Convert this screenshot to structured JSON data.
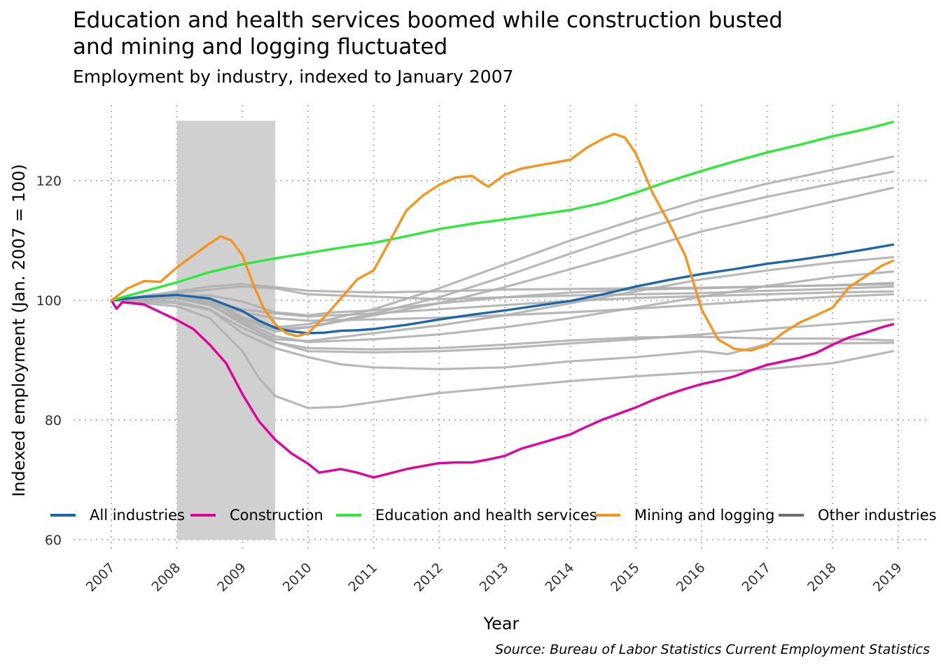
{
  "chart_data": {
    "type": "line",
    "title": "Education and health services boomed while construction busted\n and mining and logging fluctuated",
    "subtitle": "Employment by industry, indexed to January 2007",
    "xlabel": "Year",
    "ylabel": "Indexed employment (Jan. 2007 = 100)",
    "caption": "Source: Bureau of Labor Statistics Current Employment Statistics",
    "xlim": [
      2007.0,
      2019.0
    ],
    "ylim": [
      60,
      130
    ],
    "x_ticks": [
      2007,
      2008,
      2009,
      2010,
      2011,
      2012,
      2013,
      2014,
      2015,
      2016,
      2017,
      2018,
      2019
    ],
    "y_ticks": [
      60,
      80,
      100,
      120
    ],
    "grid": true,
    "legend_position": "bottom-inside",
    "shaded_region": {
      "x": [
        2008.0,
        2009.5
      ],
      "ymax": 130,
      "color": "#d0d0d0"
    },
    "legend": [
      {
        "name": "All industries",
        "color": "#1f66a8"
      },
      {
        "name": "Construction",
        "color": "#e0009a"
      },
      {
        "name": "Education and health services",
        "color": "#2ee83a"
      },
      {
        "name": "Mining and logging",
        "color": "#f7941d"
      },
      {
        "name": "Other industries",
        "color": "#6e6e6e"
      }
    ],
    "other_color": "#b0b0b0",
    "series": [
      {
        "group": "All industries",
        "x": [
          2007,
          2007.5,
          2008,
          2008.5,
          2009,
          2009.25,
          2009.5,
          2009.75,
          2010,
          2010.25,
          2010.5,
          2010.75,
          2011,
          2011.5,
          2012,
          2012.5,
          2013,
          2013.5,
          2014,
          2014.5,
          2015,
          2015.5,
          2016,
          2016.5,
          2017,
          2017.5,
          2018,
          2018.5,
          2018.92
        ],
        "y": [
          100,
          100.6,
          100.9,
          100.3,
          98.2,
          96.6,
          95.4,
          94.8,
          94.5,
          94.6,
          94.9,
          95.0,
          95.2,
          95.9,
          96.8,
          97.6,
          98.3,
          99.1,
          99.9,
          101.0,
          102.3,
          103.4,
          104.4,
          105.2,
          106.1,
          106.8,
          107.6,
          108.5,
          109.3
        ]
      },
      {
        "group": "Construction",
        "x": [
          2007,
          2007.08,
          2007.17,
          2007.5,
          2007.75,
          2008,
          2008.25,
          2008.5,
          2008.75,
          2009,
          2009.25,
          2009.5,
          2009.75,
          2010,
          2010.17,
          2010.5,
          2010.75,
          2011,
          2011.25,
          2011.5,
          2011.75,
          2012,
          2012.25,
          2012.5,
          2012.75,
          2013,
          2013.25,
          2013.5,
          2013.75,
          2014,
          2014.25,
          2014.5,
          2014.75,
          2015,
          2015.25,
          2015.5,
          2015.75,
          2016,
          2016.25,
          2016.5,
          2016.75,
          2017,
          2017.25,
          2017.5,
          2017.75,
          2018,
          2018.25,
          2018.5,
          2018.75,
          2018.92
        ],
        "y": [
          100,
          98.6,
          99.7,
          99.3,
          98.0,
          96.7,
          95.2,
          92.6,
          89.5,
          84.3,
          79.8,
          76.7,
          74.4,
          72.7,
          71.2,
          71.8,
          71.2,
          70.4,
          71.1,
          71.8,
          72.3,
          72.8,
          72.9,
          72.9,
          73.4,
          74.0,
          75.2,
          76.0,
          76.8,
          77.6,
          78.9,
          80.1,
          81.1,
          82.1,
          83.3,
          84.3,
          85.2,
          86.0,
          86.6,
          87.3,
          88.3,
          89.2,
          89.8,
          90.4,
          91.2,
          92.6,
          93.8,
          94.6,
          95.5,
          96.0
        ]
      },
      {
        "group": "Education and health services",
        "x": [
          2007,
          2007.5,
          2008,
          2008.5,
          2009,
          2009.5,
          2010,
          2010.5,
          2011,
          2011.5,
          2012,
          2012.5,
          2013,
          2013.5,
          2014,
          2014.5,
          2015,
          2015.5,
          2016,
          2016.5,
          2017,
          2017.5,
          2018,
          2018.5,
          2018.92
        ],
        "y": [
          100,
          101.5,
          103.0,
          104.7,
          106.0,
          107.0,
          107.9,
          108.8,
          109.6,
          110.7,
          111.9,
          112.8,
          113.5,
          114.3,
          115.1,
          116.3,
          118.0,
          119.9,
          121.6,
          123.2,
          124.7,
          126.0,
          127.4,
          128.6,
          129.8
        ]
      },
      {
        "group": "Mining and logging",
        "x": [
          2007,
          2007.25,
          2007.5,
          2007.75,
          2008,
          2008.25,
          2008.5,
          2008.67,
          2008.83,
          2009,
          2009.17,
          2009.33,
          2009.5,
          2009.67,
          2009.83,
          2010,
          2010.25,
          2010.5,
          2010.75,
          2011,
          2011.25,
          2011.5,
          2011.75,
          2012,
          2012.25,
          2012.5,
          2012.67,
          2012.75,
          2013,
          2013.25,
          2013.5,
          2013.75,
          2014,
          2014.25,
          2014.5,
          2014.67,
          2014.83,
          2015,
          2015.25,
          2015.5,
          2015.75,
          2016,
          2016.25,
          2016.5,
          2016.75,
          2017,
          2017.25,
          2017.5,
          2017.75,
          2018,
          2018.25,
          2018.5,
          2018.75,
          2018.92
        ],
        "y": [
          100,
          102.0,
          103.2,
          103.1,
          105.5,
          107.5,
          109.5,
          110.7,
          110.0,
          107.5,
          102.5,
          98.5,
          96.0,
          94.5,
          94.0,
          94.5,
          97.2,
          100.3,
          103.5,
          105.0,
          110.0,
          115.0,
          117.5,
          119.3,
          120.5,
          120.8,
          119.5,
          119.0,
          121.0,
          122.0,
          122.5,
          123.0,
          123.5,
          125.5,
          127.0,
          127.8,
          127.2,
          124.5,
          118.0,
          113.0,
          107.5,
          98.5,
          93.5,
          91.9,
          91.6,
          92.5,
          94.6,
          96.3,
          97.5,
          98.8,
          102.2,
          104.0,
          105.8,
          106.6
        ]
      },
      {
        "group": "Other industries",
        "x": [
          2007,
          2008,
          2008.5,
          2009,
          2009.5,
          2010,
          2011,
          2012,
          2013,
          2014,
          2015,
          2016,
          2017,
          2018,
          2018.92
        ],
        "y": [
          100,
          101.2,
          101.8,
          102.3,
          102.0,
          101.0,
          100.6,
          100.2,
          100.5,
          100.8,
          101.0,
          101.2,
          101.6,
          101.9,
          102.3
        ]
      },
      {
        "group": "Other industries",
        "x": [
          2007,
          2008,
          2008.5,
          2009,
          2009.5,
          2010,
          2011,
          2012,
          2013,
          2014,
          2015,
          2016,
          2017,
          2018,
          2018.92
        ],
        "y": [
          100,
          101.5,
          102.3,
          102.7,
          102.2,
          101.6,
          101.3,
          101.5,
          101.8,
          101.9,
          102.0,
          102.1,
          102.3,
          102.5,
          102.9
        ]
      },
      {
        "group": "Other industries",
        "x": [
          2007,
          2008,
          2008.5,
          2009,
          2009.5,
          2010,
          2011,
          2012,
          2013,
          2014,
          2015,
          2016,
          2017,
          2018,
          2018.92
        ],
        "y": [
          100,
          100.6,
          100.0,
          98.5,
          97.8,
          97.3,
          97.8,
          98.5,
          99.2,
          99.9,
          100.4,
          100.7,
          101.0,
          101.3,
          101.5
        ]
      },
      {
        "group": "Other industries",
        "x": [
          2007,
          2008,
          2008.5,
          2009,
          2009.5,
          2010,
          2011,
          2012,
          2013,
          2014,
          2015,
          2016,
          2017,
          2018,
          2018.92
        ],
        "y": [
          100,
          100.5,
          99.8,
          98.0,
          97.0,
          96.6,
          96.8,
          97.1,
          97.5,
          98.0,
          98.6,
          99.3,
          100.0,
          100.6,
          101.0
        ]
      },
      {
        "group": "Other industries",
        "x": [
          2007,
          2008,
          2008.5,
          2009,
          2009.5,
          2010,
          2010.4,
          2011,
          2012,
          2013,
          2014,
          2015,
          2016,
          2017,
          2018,
          2018.92
        ],
        "y": [
          100,
          100.8,
          100.8,
          99.8,
          98.0,
          97.5,
          98.0,
          98.3,
          99.5,
          100.5,
          101.3,
          101.8,
          102.0,
          102.3,
          102.5,
          102.7
        ]
      },
      {
        "group": "Other industries",
        "x": [
          2007,
          2008,
          2008.5,
          2009,
          2009.5,
          2010,
          2011,
          2012,
          2013,
          2014,
          2015,
          2016,
          2017,
          2018,
          2018.92
        ],
        "y": [
          100,
          100.6,
          99.5,
          96.0,
          93.5,
          93.2,
          94.5,
          95.8,
          97.5,
          99.5,
          101.5,
          103.5,
          105.0,
          106.3,
          107.2
        ]
      },
      {
        "group": "Other industries",
        "x": [
          2007,
          2008,
          2008.5,
          2009,
          2009.5,
          2010,
          2011,
          2012,
          2013,
          2014,
          2015,
          2016,
          2017,
          2018,
          2018.92
        ],
        "y": [
          100,
          100.9,
          100.0,
          96.8,
          94.8,
          95.5,
          97.5,
          99.5,
          102.2,
          105.2,
          108.3,
          111.5,
          114.0,
          116.5,
          118.8
        ]
      },
      {
        "group": "Other industries",
        "x": [
          2007,
          2008,
          2008.5,
          2009,
          2009.5,
          2010,
          2011,
          2012,
          2013,
          2014,
          2015,
          2016,
          2017,
          2018,
          2018.92
        ],
        "y": [
          100,
          100.5,
          99.8,
          97.0,
          95.2,
          95.5,
          97.8,
          100.5,
          104.0,
          107.8,
          111.5,
          114.8,
          117.3,
          119.5,
          121.5
        ]
      },
      {
        "group": "Other industries",
        "x": [
          2007,
          2008,
          2008.5,
          2009,
          2009.5,
          2010,
          2011,
          2012,
          2013,
          2014,
          2015,
          2016,
          2017,
          2018,
          2018.92
        ],
        "y": [
          100,
          100.9,
          100.2,
          97.2,
          95.5,
          96.0,
          98.5,
          102.0,
          106.0,
          110.0,
          113.5,
          116.8,
          119.5,
          121.8,
          124.0
        ]
      },
      {
        "group": "Other industries",
        "x": [
          2007,
          2008,
          2008.5,
          2009,
          2009.5,
          2010,
          2011,
          2012,
          2013,
          2014,
          2015,
          2016,
          2017,
          2018,
          2018.92
        ],
        "y": [
          100,
          100.3,
          99.2,
          96.5,
          94.0,
          93.0,
          93.5,
          94.3,
          95.5,
          97.0,
          98.8,
          100.6,
          102.4,
          103.9,
          104.8
        ]
      },
      {
        "group": "Other industries",
        "x": [
          2007,
          2008,
          2008.5,
          2009,
          2009.5,
          2010,
          2011,
          2012,
          2013,
          2014,
          2015,
          2016,
          2017,
          2018,
          2018.92
        ],
        "y": [
          100,
          100.3,
          99.3,
          96.3,
          93.0,
          92.0,
          91.8,
          92.0,
          92.6,
          93.3,
          93.8,
          93.9,
          93.6,
          93.6,
          93.3
        ]
      },
      {
        "group": "Other industries",
        "x": [
          2007,
          2008,
          2008.5,
          2009,
          2009.5,
          2010,
          2011,
          2012,
          2013,
          2014,
          2015,
          2016,
          2017,
          2018,
          2018.92
        ],
        "y": [
          100,
          99.5,
          98.4,
          95.4,
          93.0,
          91.5,
          91.3,
          91.5,
          92.0,
          92.8,
          93.5,
          94.3,
          95.2,
          96.0,
          96.8
        ]
      },
      {
        "group": "Other industries",
        "x": [
          2007,
          2008,
          2008.5,
          2009,
          2009.5,
          2010,
          2010.5,
          2011,
          2012,
          2013,
          2014,
          2015,
          2016,
          2016.4,
          2017,
          2018,
          2018.92
        ],
        "y": [
          100,
          99.8,
          98.5,
          94.5,
          92.0,
          90.5,
          89.3,
          88.8,
          88.5,
          88.8,
          89.8,
          90.5,
          91.5,
          91.0,
          92.7,
          92.8,
          92.9
        ]
      },
      {
        "group": "Other industries",
        "x": [
          2007,
          2008,
          2008.5,
          2009,
          2009.25,
          2009.5,
          2010,
          2010.5,
          2011,
          2012,
          2013,
          2014,
          2015,
          2016,
          2017,
          2018,
          2018.92
        ],
        "y": [
          100,
          99.0,
          97.0,
          91.5,
          87.0,
          84.0,
          82.0,
          82.2,
          83.0,
          84.5,
          85.5,
          86.5,
          87.3,
          88.0,
          88.5,
          89.5,
          91.5
        ]
      }
    ]
  }
}
